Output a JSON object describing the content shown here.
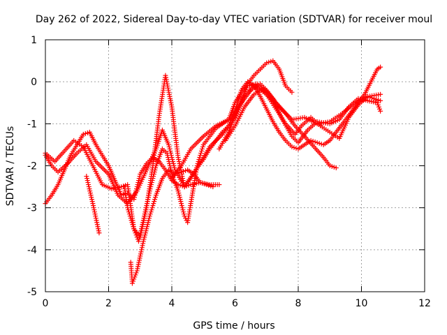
{
  "chart_data": {
    "type": "scatter",
    "title": "Day 262 of 2022, Sidereal Day-to-day VTEC variation (SDTVAR) for receiver moul",
    "xlabel": "GPS time / hours",
    "ylabel": "SDTVAR / TECUs",
    "xlim": [
      0,
      12
    ],
    "ylim": [
      -5,
      1
    ],
    "xticks": [
      0,
      2,
      4,
      6,
      8,
      10,
      12
    ],
    "yticks": [
      -5,
      -4,
      -3,
      -2,
      -1,
      0,
      1
    ],
    "xtick_labels": [
      "0",
      "2",
      "4",
      "6",
      "8",
      "10",
      "12"
    ],
    "ytick_labels": [
      "-5",
      "-4",
      "-3",
      "-2",
      "-1",
      "0",
      "1"
    ],
    "grid": true,
    "marker": "+",
    "colors": {
      "series": "#ff0000",
      "grid": "#a0a0a0",
      "axis": "#000000"
    },
    "series": [
      {
        "name": "trace-1",
        "points": [
          [
            0.0,
            -1.75
          ],
          [
            0.2,
            -2.0
          ],
          [
            0.4,
            -2.15
          ],
          [
            0.7,
            -1.95
          ],
          [
            1.0,
            -1.7
          ],
          [
            1.3,
            -1.5
          ],
          [
            1.6,
            -1.9
          ],
          [
            2.0,
            -2.2
          ],
          [
            2.3,
            -2.7
          ],
          [
            2.6,
            -2.9
          ],
          [
            2.9,
            -2.6
          ],
          [
            3.2,
            -2.1
          ],
          [
            3.5,
            -1.6
          ],
          [
            3.7,
            -1.15
          ],
          [
            3.9,
            -1.5
          ],
          [
            4.1,
            -2.1
          ],
          [
            4.4,
            -2.5
          ],
          [
            4.8,
            -2.05
          ],
          [
            5.2,
            -1.55
          ],
          [
            5.6,
            -1.25
          ],
          [
            6.0,
            -0.85
          ],
          [
            6.3,
            -0.35
          ],
          [
            6.6,
            -0.1
          ],
          [
            7.0,
            -0.3
          ],
          [
            7.4,
            -0.6
          ],
          [
            7.8,
            -0.9
          ],
          [
            8.2,
            -0.85
          ],
          [
            8.6,
            -1.0
          ],
          [
            9.0,
            -0.95
          ],
          [
            9.4,
            -0.75
          ],
          [
            9.8,
            -0.5
          ],
          [
            10.2,
            -0.35
          ],
          [
            10.6,
            -0.45
          ]
        ]
      },
      {
        "name": "trace-2",
        "points": [
          [
            0.0,
            -2.9
          ],
          [
            0.2,
            -2.7
          ],
          [
            0.4,
            -2.45
          ],
          [
            0.6,
            -2.1
          ],
          [
            0.8,
            -1.75
          ],
          [
            1.0,
            -1.5
          ],
          [
            1.2,
            -1.25
          ],
          [
            1.4,
            -1.2
          ],
          [
            1.6,
            -1.5
          ],
          [
            1.8,
            -1.75
          ],
          [
            2.0,
            -2.0
          ],
          [
            2.2,
            -2.35
          ],
          [
            2.4,
            -2.7
          ],
          [
            2.6,
            -2.65
          ],
          [
            2.8,
            -2.8
          ],
          [
            3.0,
            -2.2
          ],
          [
            3.2,
            -1.95
          ],
          [
            3.4,
            -1.8
          ],
          [
            3.6,
            -1.9
          ],
          [
            3.8,
            -2.1
          ],
          [
            4.0,
            -2.35
          ],
          [
            4.2,
            -2.45
          ],
          [
            4.4,
            -2.5
          ],
          [
            4.6,
            -2.3
          ],
          [
            4.8,
            -2.05
          ],
          [
            5.0,
            -1.85
          ],
          [
            5.2,
            -1.6
          ],
          [
            5.4,
            -1.4
          ],
          [
            5.6,
            -1.2
          ],
          [
            5.8,
            -1.05
          ]
        ]
      },
      {
        "name": "trace-3",
        "points": [
          [
            1.3,
            -2.25
          ],
          [
            1.5,
            -2.9
          ],
          [
            1.7,
            -3.6
          ]
        ]
      },
      {
        "name": "trace-4",
        "points": [
          [
            0.0,
            -1.7
          ],
          [
            0.3,
            -1.9
          ],
          [
            0.6,
            -1.65
          ],
          [
            0.9,
            -1.4
          ],
          [
            1.2,
            -1.55
          ],
          [
            1.5,
            -2.0
          ],
          [
            1.8,
            -2.45
          ],
          [
            2.1,
            -2.55
          ],
          [
            2.4,
            -2.5
          ],
          [
            2.6,
            -2.45
          ],
          [
            2.8,
            -3.5
          ],
          [
            3.0,
            -3.7
          ],
          [
            3.2,
            -3.0
          ],
          [
            3.4,
            -2.0
          ],
          [
            3.6,
            -0.8
          ],
          [
            3.8,
            0.15
          ],
          [
            4.0,
            -0.6
          ],
          [
            4.2,
            -1.8
          ],
          [
            4.4,
            -2.5
          ],
          [
            4.6,
            -2.45
          ],
          [
            4.9,
            -2.4
          ],
          [
            5.2,
            -2.45
          ],
          [
            5.5,
            -2.45
          ]
        ]
      },
      {
        "name": "trace-5",
        "points": [
          [
            2.7,
            -4.3
          ],
          [
            2.75,
            -4.8
          ],
          [
            2.9,
            -4.5
          ],
          [
            3.1,
            -3.8
          ],
          [
            3.3,
            -3.2
          ],
          [
            3.5,
            -2.7
          ],
          [
            3.7,
            -2.3
          ],
          [
            3.9,
            -2.1
          ],
          [
            4.1,
            -2.2
          ],
          [
            4.3,
            -2.15
          ],
          [
            4.5,
            -2.1
          ],
          [
            4.7,
            -2.2
          ],
          [
            4.9,
            -2.4
          ],
          [
            5.1,
            -2.45
          ],
          [
            5.3,
            -2.5
          ]
        ]
      },
      {
        "name": "trace-6",
        "points": [
          [
            2.5,
            -2.5
          ],
          [
            2.6,
            -3.0
          ],
          [
            2.8,
            -3.5
          ],
          [
            2.95,
            -3.8
          ],
          [
            3.1,
            -3.3
          ],
          [
            3.3,
            -2.6
          ],
          [
            3.5,
            -2.0
          ],
          [
            3.7,
            -1.6
          ],
          [
            3.85,
            -1.7
          ],
          [
            4.0,
            -2.2
          ],
          [
            4.2,
            -2.6
          ],
          [
            4.4,
            -3.2
          ],
          [
            4.5,
            -3.35
          ],
          [
            4.6,
            -2.9
          ],
          [
            4.8,
            -2.0
          ],
          [
            5.0,
            -1.5
          ],
          [
            5.2,
            -1.3
          ],
          [
            5.4,
            -1.1
          ],
          [
            5.6,
            -1.0
          ],
          [
            5.8,
            -0.9
          ],
          [
            6.0,
            -0.5
          ],
          [
            6.2,
            -0.25
          ],
          [
            6.4,
            -0.05
          ],
          [
            6.6,
            0.15
          ],
          [
            6.8,
            0.3
          ],
          [
            7.0,
            0.45
          ],
          [
            7.2,
            0.5
          ],
          [
            7.4,
            0.3
          ],
          [
            7.6,
            -0.1
          ],
          [
            7.8,
            -0.25
          ]
        ]
      },
      {
        "name": "trace-7",
        "points": [
          [
            4.0,
            -2.3
          ],
          [
            4.3,
            -2.0
          ],
          [
            4.6,
            -1.6
          ],
          [
            5.0,
            -1.3
          ],
          [
            5.4,
            -1.05
          ],
          [
            5.8,
            -0.9
          ],
          [
            6.0,
            -0.75
          ],
          [
            6.2,
            -0.5
          ],
          [
            6.5,
            -0.2
          ],
          [
            6.8,
            -0.05
          ],
          [
            7.0,
            -0.2
          ],
          [
            7.3,
            -0.5
          ],
          [
            7.6,
            -0.75
          ],
          [
            7.9,
            -1.05
          ],
          [
            8.2,
            -1.3
          ],
          [
            8.5,
            -1.55
          ],
          [
            8.8,
            -1.8
          ],
          [
            9.0,
            -2.0
          ],
          [
            9.2,
            -2.05
          ]
        ]
      },
      {
        "name": "trace-8",
        "points": [
          [
            5.8,
            -1.05
          ],
          [
            6.0,
            -0.7
          ],
          [
            6.2,
            -0.2
          ],
          [
            6.4,
            0.0
          ],
          [
            6.6,
            -0.1
          ],
          [
            6.8,
            -0.35
          ],
          [
            7.0,
            -0.65
          ],
          [
            7.2,
            -0.95
          ],
          [
            7.4,
            -1.2
          ],
          [
            7.6,
            -1.4
          ],
          [
            7.8,
            -1.55
          ],
          [
            8.0,
            -1.6
          ],
          [
            8.2,
            -1.5
          ],
          [
            8.4,
            -1.4
          ],
          [
            8.6,
            -1.45
          ],
          [
            8.8,
            -1.5
          ],
          [
            9.0,
            -1.4
          ],
          [
            9.2,
            -1.2
          ],
          [
            9.5,
            -0.9
          ],
          [
            9.8,
            -0.6
          ],
          [
            10.1,
            -0.3
          ],
          [
            10.3,
            0.0
          ],
          [
            10.5,
            0.3
          ],
          [
            10.6,
            0.35
          ]
        ]
      },
      {
        "name": "trace-9",
        "points": [
          [
            5.7,
            -1.4
          ],
          [
            6.0,
            -1.05
          ],
          [
            6.3,
            -0.6
          ],
          [
            6.6,
            -0.3
          ],
          [
            6.9,
            -0.15
          ],
          [
            7.2,
            -0.4
          ],
          [
            7.5,
            -0.9
          ],
          [
            7.8,
            -1.3
          ],
          [
            8.0,
            -1.45
          ],
          [
            8.3,
            -1.15
          ],
          [
            8.6,
            -0.95
          ],
          [
            9.0,
            -1.0
          ],
          [
            9.3,
            -0.9
          ],
          [
            9.6,
            -0.6
          ],
          [
            9.9,
            -0.4
          ],
          [
            10.2,
            -0.45
          ],
          [
            10.5,
            -0.5
          ],
          [
            10.6,
            -0.7
          ]
        ]
      },
      {
        "name": "trace-10",
        "points": [
          [
            5.5,
            -1.6
          ],
          [
            5.8,
            -1.2
          ],
          [
            6.1,
            -0.6
          ],
          [
            6.4,
            -0.1
          ],
          [
            6.7,
            -0.05
          ],
          [
            7.0,
            -0.3
          ],
          [
            7.3,
            -0.65
          ],
          [
            7.6,
            -1.0
          ],
          [
            7.9,
            -1.25
          ],
          [
            8.1,
            -1.05
          ],
          [
            8.4,
            -0.85
          ],
          [
            8.7,
            -1.05
          ],
          [
            9.0,
            -1.2
          ],
          [
            9.3,
            -1.35
          ],
          [
            9.6,
            -0.85
          ],
          [
            9.9,
            -0.55
          ],
          [
            10.2,
            -0.35
          ],
          [
            10.6,
            -0.3
          ]
        ]
      }
    ]
  }
}
